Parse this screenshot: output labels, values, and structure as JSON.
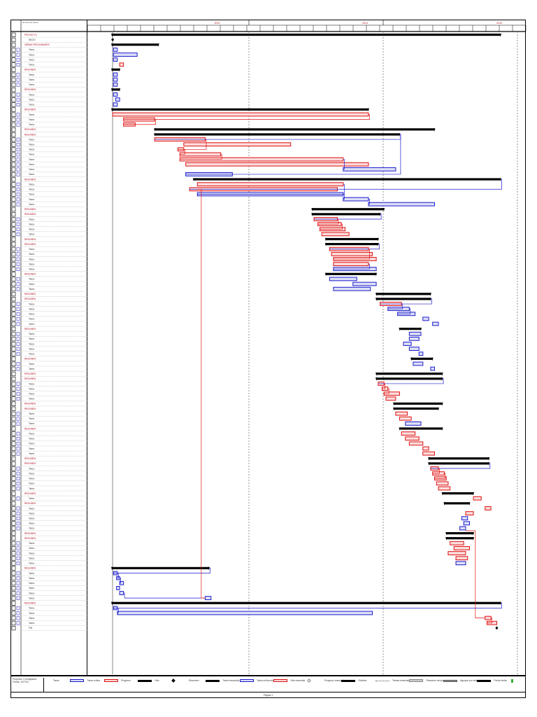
{
  "chart_data": {
    "type": "gantt",
    "title": "",
    "header": {
      "name_column": "Nombre de tarea",
      "timescale_major": [
        "2013",
        "2014",
        "2015"
      ],
      "timescale_minor_count": 33
    },
    "time_range": [
      0,
      100
    ],
    "rows": [
      {
        "id": 1,
        "name": "PROYECTO",
        "kind": "summary_top",
        "start": 0,
        "end": 100
      },
      {
        "id": 2,
        "name": "INICIO",
        "kind": "milestone",
        "start": 0.2,
        "end": 0.2
      },
      {
        "id": 3,
        "name": "OBRAS PRELIMINARES",
        "kind": "summary",
        "start": 0,
        "end": 12
      },
      {
        "id": 4,
        "name": "Tarea",
        "kind": "task",
        "start": 0.4,
        "end": 1.4
      },
      {
        "id": 5,
        "name": "Tarea",
        "kind": "task",
        "start": 0.4,
        "end": 6.5
      },
      {
        "id": 6,
        "name": "Tarea",
        "kind": "task",
        "start": 0.4,
        "end": 1.4
      },
      {
        "id": 7,
        "name": "Tarea",
        "kind": "crit",
        "start": 2,
        "end": 3
      },
      {
        "id": 8,
        "name": "RESUMEN",
        "kind": "summary",
        "start": 0,
        "end": 2
      },
      {
        "id": 9,
        "name": "Tarea",
        "kind": "task",
        "start": 0.4,
        "end": 1.4
      },
      {
        "id": 10,
        "name": "Tarea",
        "kind": "task",
        "start": 0.4,
        "end": 1.4
      },
      {
        "id": 11,
        "name": "Tarea",
        "kind": "task",
        "start": 0.4,
        "end": 1.4
      },
      {
        "id": 12,
        "name": "RESUMEN",
        "kind": "summary",
        "start": 0,
        "end": 2
      },
      {
        "id": 13,
        "name": "Tarea",
        "kind": "task",
        "start": 0.4,
        "end": 1.4
      },
      {
        "id": 14,
        "name": "Tarea",
        "kind": "task",
        "start": 1,
        "end": 2
      },
      {
        "id": 15,
        "name": "Tarea",
        "kind": "task",
        "start": 0.4,
        "end": 1.4
      },
      {
        "id": 16,
        "name": "RESUMEN",
        "kind": "summary",
        "start": 0,
        "end": 66
      },
      {
        "id": 17,
        "name": "Tarea",
        "kind": "crit",
        "start": 0.2,
        "end": 66
      },
      {
        "id": 18,
        "name": "Tarea",
        "kind": "crit",
        "start": 3,
        "end": 11
      },
      {
        "id": 19,
        "name": "Tarea",
        "kind": "crit",
        "start": 3,
        "end": 6
      },
      {
        "id": 20,
        "name": "RESUMEN",
        "kind": "summary",
        "start": 11,
        "end": 83
      },
      {
        "id": 21,
        "name": "RESUMEN",
        "kind": "summary",
        "start": 11,
        "end": 74
      },
      {
        "id": 22,
        "name": "Tarea",
        "kind": "crit",
        "start": 11,
        "end": 24
      },
      {
        "id": 23,
        "name": "Tarea",
        "kind": "crit",
        "start": 18.5,
        "end": 46
      },
      {
        "id": 24,
        "name": "Tarea",
        "kind": "crit",
        "start": 17,
        "end": 18.5
      },
      {
        "id": 25,
        "name": "Tarea",
        "kind": "crit",
        "start": 17.5,
        "end": 28
      },
      {
        "id": 26,
        "name": "Tarea",
        "kind": "crit",
        "start": 17.5,
        "end": 59.5
      },
      {
        "id": 27,
        "name": "Tarea",
        "kind": "crit",
        "start": 19,
        "end": 66
      },
      {
        "id": 28,
        "name": "Tarea",
        "kind": "task",
        "start": 59.5,
        "end": 73
      },
      {
        "id": 29,
        "name": "Tarea",
        "kind": "task",
        "start": 19,
        "end": 31
      },
      {
        "id": 30,
        "name": "RESUMEN",
        "kind": "summary",
        "start": 21,
        "end": 100
      },
      {
        "id": 31,
        "name": "Tarea",
        "kind": "crit",
        "start": 22,
        "end": 59.5
      },
      {
        "id": 32,
        "name": "Tarea",
        "kind": "crit",
        "start": 20,
        "end": 58
      },
      {
        "id": 33,
        "name": "Tarea",
        "kind": "task",
        "start": 22,
        "end": 59.5
      },
      {
        "id": 34,
        "name": "Tarea",
        "kind": "task",
        "start": 59.5,
        "end": 66
      },
      {
        "id": 35,
        "name": "Tarea",
        "kind": "task",
        "start": 66,
        "end": 83
      },
      {
        "id": 36,
        "name": "RESUMEN",
        "kind": "summary",
        "start": 51.5,
        "end": 70
      },
      {
        "id": 37,
        "name": "RESUMEN",
        "kind": "summary",
        "start": 51.5,
        "end": 69
      },
      {
        "id": 38,
        "name": "Tarea",
        "kind": "crit",
        "start": 52,
        "end": 58
      },
      {
        "id": 39,
        "name": "Tarea",
        "kind": "crit",
        "start": 53,
        "end": 59
      },
      {
        "id": 40,
        "name": "Tarea",
        "kind": "crit",
        "start": 53.5,
        "end": 60
      },
      {
        "id": 41,
        "name": "Tarea",
        "kind": "crit",
        "start": 54,
        "end": 61
      },
      {
        "id": 42,
        "name": "RESUMEN",
        "kind": "summary",
        "start": 55,
        "end": 68.5
      },
      {
        "id": 43,
        "name": "RESUMEN",
        "kind": "summary",
        "start": 55,
        "end": 68.5
      },
      {
        "id": 44,
        "name": "Tarea",
        "kind": "crit",
        "start": 56,
        "end": 66
      },
      {
        "id": 45,
        "name": "Tarea",
        "kind": "crit",
        "start": 56.5,
        "end": 67
      },
      {
        "id": 46,
        "name": "Tarea",
        "kind": "crit",
        "start": 57,
        "end": 68
      },
      {
        "id": 47,
        "name": "Tarea",
        "kind": "crit",
        "start": 57,
        "end": 66
      },
      {
        "id": 48,
        "name": "Tarea",
        "kind": "task",
        "start": 57,
        "end": 68
      },
      {
        "id": 49,
        "name": "RESUMEN",
        "kind": "summary",
        "start": 55,
        "end": 68
      },
      {
        "id": 50,
        "name": "Tarea",
        "kind": "task",
        "start": 56,
        "end": 63
      },
      {
        "id": 51,
        "name": "Tarea",
        "kind": "task",
        "start": 62,
        "end": 68
      },
      {
        "id": 52,
        "name": "Tarea",
        "kind": "task",
        "start": 57,
        "end": 66.5
      },
      {
        "id": 53,
        "name": "RESUMEN",
        "kind": "summary",
        "start": 68,
        "end": 82
      },
      {
        "id": 54,
        "name": "RESUMEN",
        "kind": "summary",
        "start": 68,
        "end": 82
      },
      {
        "id": 55,
        "name": "Tarea",
        "kind": "crit",
        "start": 69,
        "end": 74.5
      },
      {
        "id": 56,
        "name": "Tarea",
        "kind": "task",
        "start": 71,
        "end": 76.5
      },
      {
        "id": 57,
        "name": "Tarea",
        "kind": "task",
        "start": 73.5,
        "end": 78
      },
      {
        "id": 58,
        "name": "Tarea",
        "kind": "task",
        "start": 80,
        "end": 81.5
      },
      {
        "id": 59,
        "name": "Tarea",
        "kind": "task",
        "start": 82.5,
        "end": 84
      },
      {
        "id": 60,
        "name": "RESUMEN",
        "kind": "summary",
        "start": 74,
        "end": 79.5
      },
      {
        "id": 61,
        "name": "Tarea",
        "kind": "task",
        "start": 76.5,
        "end": 79.5
      },
      {
        "id": 62,
        "name": "Tarea",
        "kind": "task",
        "start": 76.5,
        "end": 79
      },
      {
        "id": 63,
        "name": "Tarea",
        "kind": "task",
        "start": 75,
        "end": 77
      },
      {
        "id": 64,
        "name": "Tarea",
        "kind": "task",
        "start": 76.5,
        "end": 79
      },
      {
        "id": 65,
        "name": "Tarea",
        "kind": "task",
        "start": 79,
        "end": 80
      },
      {
        "id": 66,
        "name": "RESUMEN",
        "kind": "summary",
        "start": 77,
        "end": 82.5
      },
      {
        "id": 67,
        "name": "Tarea",
        "kind": "task",
        "start": 77.5,
        "end": 80
      },
      {
        "id": 68,
        "name": "Tarea",
        "kind": "task",
        "start": 82,
        "end": 83
      },
      {
        "id": 69,
        "name": "RESUMEN",
        "kind": "summary",
        "start": 68,
        "end": 85
      },
      {
        "id": 70,
        "name": "RESUMEN",
        "kind": "summary",
        "start": 68,
        "end": 85
      },
      {
        "id": 71,
        "name": "Tarea",
        "kind": "crit",
        "start": 68.5,
        "end": 70
      },
      {
        "id": 72,
        "name": "Tarea",
        "kind": "crit",
        "start": 69.5,
        "end": 71
      },
      {
        "id": 73,
        "name": "Tarea",
        "kind": "crit",
        "start": 70,
        "end": 74
      },
      {
        "id": 74,
        "name": "Tarea",
        "kind": "crit",
        "start": 70.5,
        "end": 73
      },
      {
        "id": 75,
        "name": "RESUMEN",
        "kind": "summary",
        "start": 72.5,
        "end": 85
      },
      {
        "id": 76,
        "name": "RESUMEN",
        "kind": "summary",
        "start": 72.5,
        "end": 84
      },
      {
        "id": 77,
        "name": "Tarea",
        "kind": "crit",
        "start": 73,
        "end": 76
      },
      {
        "id": 78,
        "name": "Tarea",
        "kind": "crit",
        "start": 74,
        "end": 77
      },
      {
        "id": 79,
        "name": "Tarea",
        "kind": "task",
        "start": 75.5,
        "end": 79.5
      },
      {
        "id": 80,
        "name": "RESUMEN",
        "kind": "summary",
        "start": 74,
        "end": 85
      },
      {
        "id": 81,
        "name": "Tarea",
        "kind": "crit",
        "start": 74.5,
        "end": 78
      },
      {
        "id": 82,
        "name": "Tarea",
        "kind": "crit",
        "start": 75.5,
        "end": 79
      },
      {
        "id": 83,
        "name": "Tarea",
        "kind": "crit",
        "start": 76.5,
        "end": 80
      },
      {
        "id": 84,
        "name": "Tarea",
        "kind": "crit",
        "start": 80,
        "end": 81.5
      },
      {
        "id": 85,
        "name": "Tarea",
        "kind": "crit",
        "start": 80,
        "end": 83
      },
      {
        "id": 86,
        "name": "RESUMEN",
        "kind": "summary",
        "start": 81.5,
        "end": 97
      },
      {
        "id": 87,
        "name": "RESUMEN",
        "kind": "summary",
        "start": 81.5,
        "end": 97
      },
      {
        "id": 88,
        "name": "Tarea",
        "kind": "crit",
        "start": 82,
        "end": 84
      },
      {
        "id": 89,
        "name": "Tarea",
        "kind": "crit",
        "start": 82.5,
        "end": 85.5
      },
      {
        "id": 90,
        "name": "Tarea",
        "kind": "crit",
        "start": 83,
        "end": 86
      },
      {
        "id": 91,
        "name": "Tarea",
        "kind": "crit",
        "start": 83.5,
        "end": 86.5
      },
      {
        "id": 92,
        "name": "Tarea",
        "kind": "crit",
        "start": 84,
        "end": 87
      },
      {
        "id": 93,
        "name": "RESUMEN",
        "kind": "summary",
        "start": 85,
        "end": 93
      },
      {
        "id": 94,
        "name": "Tarea",
        "kind": "crit",
        "start": 93,
        "end": 95
      },
      {
        "id": 95,
        "name": "RESUMEN",
        "kind": "summary",
        "start": 85.5,
        "end": 92
      },
      {
        "id": 96,
        "name": "Tarea",
        "kind": "crit",
        "start": 96,
        "end": 97.5
      },
      {
        "id": 97,
        "name": "Tarea",
        "kind": "crit",
        "start": 91,
        "end": 93
      },
      {
        "id": 98,
        "name": "Tarea",
        "kind": "task",
        "start": 90,
        "end": 91.5
      },
      {
        "id": 99,
        "name": "Tarea",
        "kind": "task",
        "start": 90.5,
        "end": 92
      },
      {
        "id": 100,
        "name": "Tarea",
        "kind": "task",
        "start": 89.5,
        "end": 91
      },
      {
        "id": 101,
        "name": "RESUMEN",
        "kind": "summary",
        "start": 86,
        "end": 93
      },
      {
        "id": 102,
        "name": "RESUMEN",
        "kind": "summary",
        "start": 86,
        "end": 93
      },
      {
        "id": 103,
        "name": "Tarea",
        "kind": "crit",
        "start": 87,
        "end": 90.5
      },
      {
        "id": 104,
        "name": "Tarea",
        "kind": "crit",
        "start": 88,
        "end": 92
      },
      {
        "id": 105,
        "name": "Tarea",
        "kind": "crit",
        "start": 86.5,
        "end": 91
      },
      {
        "id": 106,
        "name": "Tarea",
        "kind": "crit",
        "start": 88.5,
        "end": 91.5
      },
      {
        "id": 107,
        "name": "Tarea",
        "kind": "task",
        "start": 88.5,
        "end": 91
      },
      {
        "id": 108,
        "name": "RESUMEN",
        "kind": "summary",
        "start": 0,
        "end": 25
      },
      {
        "id": 109,
        "name": "Tarea",
        "kind": "task",
        "start": 0.4,
        "end": 1.4
      },
      {
        "id": 110,
        "name": "Tarea",
        "kind": "task",
        "start": 1.2,
        "end": 2
      },
      {
        "id": 111,
        "name": "Tarea",
        "kind": "task",
        "start": 2,
        "end": 3
      },
      {
        "id": 112,
        "name": "Tarea",
        "kind": "task",
        "start": 1.2,
        "end": 2
      },
      {
        "id": 113,
        "name": "Tarea",
        "kind": "task",
        "start": 2,
        "end": 3
      },
      {
        "id": 114,
        "name": "Tarea",
        "kind": "task",
        "start": 24,
        "end": 25.5
      },
      {
        "id": 115,
        "name": "RESUMEN",
        "kind": "summary",
        "start": 0,
        "end": 100
      },
      {
        "id": 116,
        "name": "Tarea",
        "kind": "task",
        "start": 0.4,
        "end": 1.4
      },
      {
        "id": 117,
        "name": "Tarea",
        "kind": "task",
        "start": 1.4,
        "end": 67
      },
      {
        "id": 118,
        "name": "Tarea",
        "kind": "crit",
        "start": 96,
        "end": 97.5
      },
      {
        "id": 119,
        "name": "Tarea",
        "kind": "crit",
        "start": 96.5,
        "end": 99
      },
      {
        "id": 120,
        "name": "FIN",
        "kind": "milestone",
        "start": 99,
        "end": 99
      }
    ]
  },
  "legend": {
    "project_label": "Proyecto: Cronograma",
    "project_date": "Fecha: 12/7/13",
    "items": [
      {
        "label": "Tarea",
        "swatch": "task"
      },
      {
        "label": "Tarea crítica",
        "swatch": "crit"
      },
      {
        "label": "Progreso",
        "swatch": "progress"
      },
      {
        "label": "Hito",
        "swatch": "milestone"
      },
      {
        "label": "Resumen",
        "swatch": "summary"
      },
      {
        "label": "Tarea resumida",
        "swatch": "task"
      },
      {
        "label": "Tarea crítica resumida",
        "swatch": "crit"
      },
      {
        "label": "Hito resumido",
        "swatch": "milestone-outline"
      },
      {
        "label": "Progreso resumido",
        "swatch": "progress"
      },
      {
        "label": "División",
        "swatch": "dotted"
      },
      {
        "label": "Tareas externas",
        "swatch": "grey"
      },
      {
        "label": "Resumen del proyecto",
        "swatch": "summary-grey"
      },
      {
        "label": "Agrupar por síntesis",
        "swatch": "summary"
      },
      {
        "label": "Fecha límite",
        "swatch": "deadline"
      }
    ]
  },
  "footer": {
    "page": "Página 1"
  },
  "colors": {
    "task": "#1a1acc",
    "crit": "#e01010",
    "critFill": "#fbdcdc",
    "taskFill": "#dde0f6",
    "summary": "#000000",
    "header": "#b01020"
  }
}
